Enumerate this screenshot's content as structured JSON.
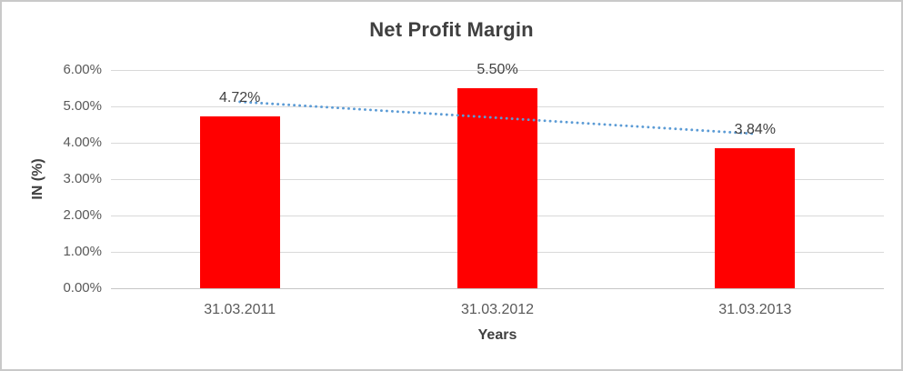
{
  "colors": {
    "bar": "#FF0000",
    "trendline": "#5B9BD5",
    "gridline": "#D9D9D9",
    "axis_line": "#C6C6C6",
    "tick_text": "#595959",
    "title_text": "#404040",
    "frame_border": "#C9C9C9",
    "background": "#FFFFFF"
  },
  "chart_data": {
    "type": "bar",
    "title": "Net Profit Margin",
    "xlabel": "Years",
    "ylabel": "IN (%)",
    "categories": [
      "31.03.2011",
      "31.03.2012",
      "31.03.2013"
    ],
    "values": [
      4.72,
      5.5,
      3.84
    ],
    "data_labels": [
      "4.72%",
      "5.50%",
      "3.84%"
    ],
    "y_ticks": [
      "6.00%",
      "5.00%",
      "4.00%",
      "3.00%",
      "2.00%",
      "1.00%",
      "0.00%"
    ],
    "ylim": [
      0,
      6
    ],
    "y_tick_step": 1,
    "grid": true,
    "legend": "none",
    "series_color": "#FF0000",
    "trendline": {
      "type": "linear",
      "style": "dotted",
      "color": "#5B9BD5"
    }
  }
}
